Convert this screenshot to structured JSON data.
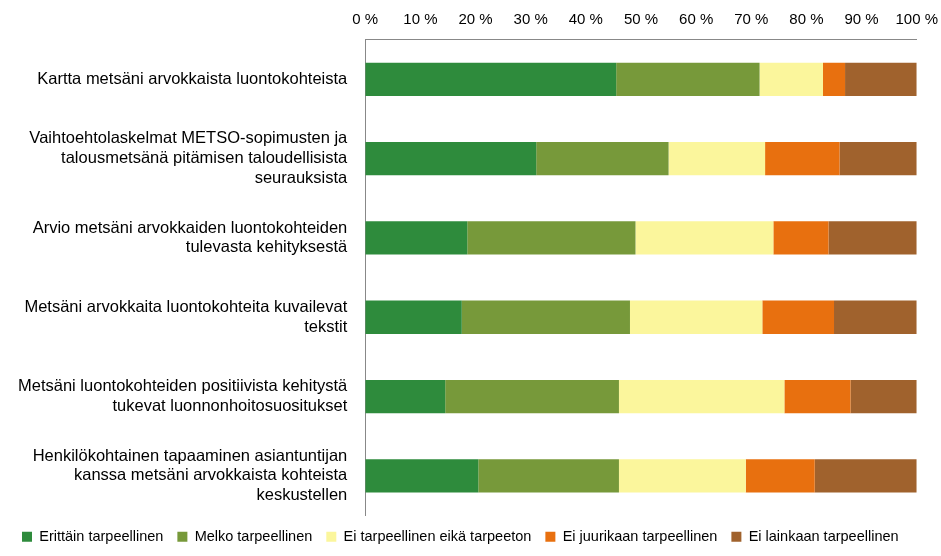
{
  "chart_data": {
    "type": "bar",
    "orientation": "horizontal",
    "stacked": true,
    "grid": false,
    "legend": "bottom",
    "categories": [
      "Kartta metsäni arvokkaista luontokohteista",
      "Vaihtoehtolaskelmat METSO-sopimusten ja\ntalousmetsänä pitämisen taloudellisista\nseurauksista",
      "Arvio metsäni arvokkaiden luontokohteiden\ntulevasta kehityksestä",
      "Metsäni arvokkaita luontokohteita kuvailevat\ntekstit",
      "Metsäni luontokohteiden positiivista kehitystä\ntukevat luonnonhoitosuositukset",
      "Henkilökohtainen tapaaminen asiantuntijan\nkanssa metsäni arvokkaista kohteista\nkeskustellen"
    ],
    "series": [
      {
        "name": "Erittäin tarpeellinen",
        "color": "#2e8b3c",
        "values": [
          45.5,
          31,
          18.5,
          17.5,
          14.5,
          20.5
        ]
      },
      {
        "name": "Melko tarpeellinen",
        "color": "#77993a",
        "values": [
          26,
          24,
          30.5,
          30.5,
          31.5,
          25.5
        ]
      },
      {
        "name": "Ei tarpeellinen eikä tarpeeton",
        "color": "#fbf69c",
        "values": [
          11.5,
          17.5,
          25,
          24,
          30,
          23
        ]
      },
      {
        "name": "Ei juurikaan tarpeellinen",
        "color": "#e8700f",
        "values": [
          4,
          13.5,
          10,
          13,
          12,
          12.5
        ]
      },
      {
        "name": "Ei lainkaan tarpeellinen",
        "color": "#a0622d",
        "values": [
          13,
          14,
          16,
          15,
          12,
          18.5
        ]
      }
    ],
    "xlim": [
      0,
      100
    ],
    "xticks": [
      {
        "value": 0,
        "label": "0 %"
      },
      {
        "value": 10,
        "label": "10 %"
      },
      {
        "value": 20,
        "label": "20 %"
      },
      {
        "value": 30,
        "label": "30 %"
      },
      {
        "value": 40,
        "label": "40 %"
      },
      {
        "value": 50,
        "label": "50 %"
      },
      {
        "value": 60,
        "label": "60 %"
      },
      {
        "value": 70,
        "label": "70 %"
      },
      {
        "value": 80,
        "label": "80 %"
      },
      {
        "value": 90,
        "label": "90 %"
      },
      {
        "value": 100,
        "label": "100 %"
      }
    ]
  }
}
